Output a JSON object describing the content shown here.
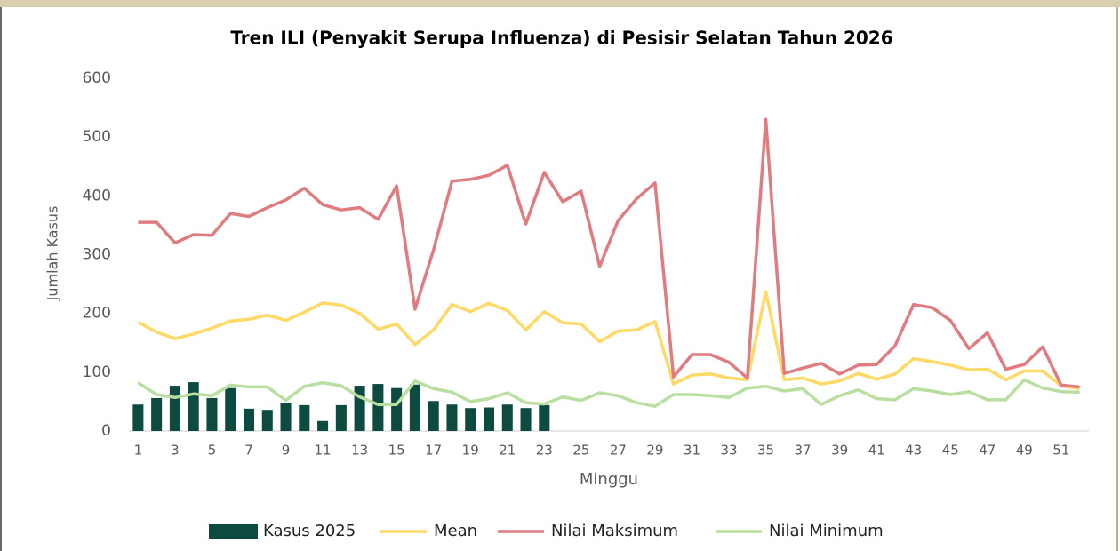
{
  "chart_data": {
    "type": "bar",
    "title": "Tren ILI (Penyakit Serupa Influenza) di Pesisir Selatan Tahun 2026",
    "x_label": "Minggu",
    "y_label": "Jumlah Kasus",
    "categories": [
      "1",
      null,
      "3",
      null,
      "5",
      null,
      "7",
      null,
      "9",
      null,
      "11",
      null,
      "13",
      null,
      "15",
      null,
      "17",
      null,
      "19",
      null,
      "21",
      null,
      "23",
      null,
      "25",
      null,
      "27",
      null,
      "29",
      null,
      "31",
      null,
      "33",
      null,
      "35",
      null,
      "37",
      null,
      "39",
      null,
      "41",
      null,
      "43",
      null,
      "45",
      null,
      "47",
      null,
      "49",
      null,
      "51",
      null
    ],
    "ylim": [
      0,
      600
    ],
    "yticks": [
      0,
      100,
      200,
      300,
      400,
      500,
      600
    ],
    "grid": false,
    "legend": "bottom",
    "series": [
      {
        "name": "Kasus 2025",
        "type": "bar",
        "color": "#0d4b40",
        "values": [
          45,
          56,
          77,
          83,
          56,
          73,
          38,
          36,
          48,
          44,
          17,
          44,
          77,
          80,
          73,
          79,
          51,
          45,
          39,
          40,
          45,
          39,
          44,
          null,
          null,
          null,
          null,
          null,
          null,
          null,
          null,
          null,
          null,
          null,
          null,
          null,
          null,
          null,
          null,
          null,
          null,
          null,
          null,
          null,
          null,
          null,
          null,
          null,
          null,
          null,
          null,
          null
        ]
      },
      {
        "name": "Mean",
        "type": "line",
        "color": "#ffd966",
        "values": [
          185,
          168,
          157,
          165,
          175,
          187,
          190,
          197,
          188,
          202,
          218,
          214,
          200,
          173,
          182,
          147,
          172,
          215,
          203,
          217,
          205,
          172,
          203,
          184,
          182,
          152,
          170,
          172,
          186,
          80,
          95,
          97,
          90,
          87,
          237,
          87,
          90,
          80,
          85,
          98,
          88,
          97,
          123,
          118,
          112,
          104,
          105,
          87,
          102,
          102,
          77,
          72
        ]
      },
      {
        "name": "Nilai Maksimum",
        "type": "line",
        "color": "#e07b80",
        "values": [
          355,
          355,
          320,
          334,
          333,
          370,
          365,
          380,
          393,
          413,
          385,
          376,
          380,
          360,
          417,
          207,
          308,
          425,
          428,
          435,
          452,
          352,
          440,
          390,
          408,
          280,
          358,
          395,
          422,
          92,
          130,
          130,
          117,
          90,
          530,
          98,
          107,
          115,
          97,
          112,
          113,
          145,
          215,
          210,
          188,
          140,
          167,
          105,
          113,
          143,
          78,
          75
        ]
      },
      {
        "name": "Nilai Minimum",
        "type": "line",
        "color": "#b8dfa0",
        "values": [
          82,
          62,
          57,
          63,
          60,
          78,
          75,
          75,
          52,
          76,
          82,
          77,
          58,
          45,
          45,
          85,
          72,
          66,
          50,
          55,
          65,
          48,
          46,
          58,
          52,
          65,
          60,
          48,
          42,
          62,
          62,
          60,
          57,
          73,
          76,
          68,
          72,
          45,
          60,
          70,
          55,
          53,
          72,
          68,
          62,
          67,
          53,
          53,
          87,
          73,
          67,
          66
        ]
      }
    ]
  }
}
